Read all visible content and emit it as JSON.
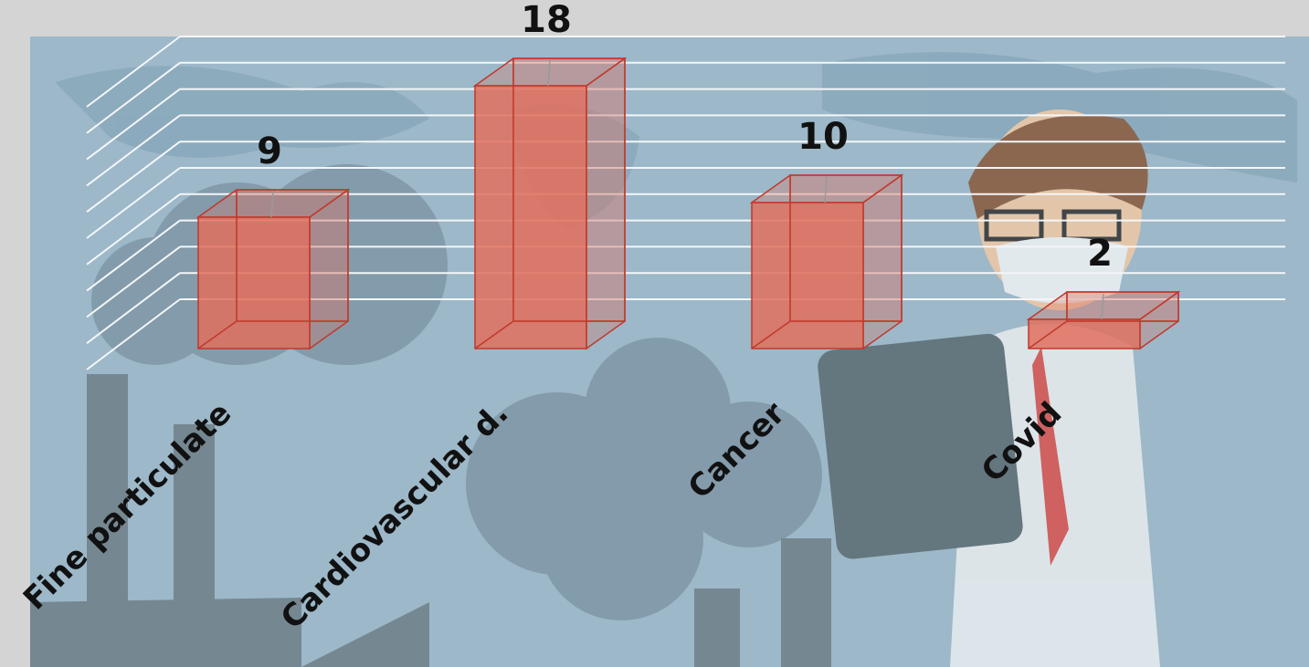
{
  "chart_data": {
    "type": "bar3d",
    "categories": [
      "Fine particulate",
      "Cardiovascular d.",
      "Cancer",
      "Covid"
    ],
    "values": [
      9,
      18,
      10,
      2
    ],
    "color": "#e0705e",
    "ylim": [
      0,
      20
    ],
    "yticks": [
      0,
      2,
      4,
      6,
      8,
      10,
      12,
      14,
      16,
      18,
      20
    ],
    "grid": true
  }
}
